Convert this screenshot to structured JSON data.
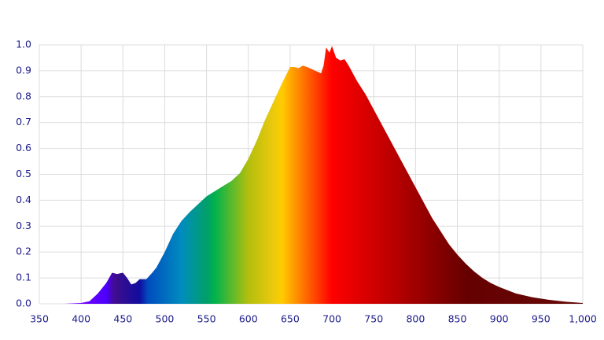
{
  "chart_data": {
    "type": "area",
    "x": [
      350,
      380,
      400,
      410,
      420,
      430,
      437,
      443,
      450,
      455,
      460,
      465,
      470,
      478,
      485,
      490,
      500,
      510,
      520,
      530,
      540,
      550,
      560,
      570,
      580,
      590,
      600,
      610,
      620,
      630,
      640,
      650,
      655,
      660,
      665,
      670,
      680,
      687,
      690,
      693,
      697,
      700,
      705,
      710,
      715,
      720,
      730,
      740,
      750,
      760,
      770,
      780,
      790,
      800,
      810,
      820,
      830,
      840,
      850,
      860,
      870,
      880,
      890,
      900,
      920,
      940,
      960,
      980,
      1000
    ],
    "values": [
      0,
      0,
      0.003,
      0.01,
      0.04,
      0.08,
      0.12,
      0.115,
      0.12,
      0.1,
      0.075,
      0.08,
      0.095,
      0.095,
      0.12,
      0.14,
      0.2,
      0.27,
      0.32,
      0.355,
      0.385,
      0.415,
      0.435,
      0.455,
      0.475,
      0.505,
      0.56,
      0.63,
      0.71,
      0.78,
      0.85,
      0.915,
      0.915,
      0.91,
      0.92,
      0.915,
      0.9,
      0.89,
      0.92,
      0.99,
      0.97,
      0.995,
      0.95,
      0.94,
      0.945,
      0.92,
      0.86,
      0.81,
      0.75,
      0.69,
      0.63,
      0.57,
      0.51,
      0.45,
      0.39,
      0.33,
      0.28,
      0.23,
      0.19,
      0.155,
      0.125,
      0.1,
      0.08,
      0.065,
      0.04,
      0.025,
      0.015,
      0.008,
      0.003
    ],
    "xlim": [
      350,
      1000
    ],
    "xticks": [
      350,
      400,
      450,
      500,
      550,
      600,
      650,
      700,
      750,
      800,
      850,
      900,
      950,
      {
        "value": 1000,
        "label": "1,000"
      }
    ],
    "ylim": [
      0,
      1
    ],
    "yticks": [
      {
        "value": 0,
        "label": "0.0"
      },
      0.1,
      0.2,
      0.3,
      0.4,
      0.5,
      0.6,
      0.7,
      0.8,
      0.9,
      {
        "value": 1,
        "label": "1.0"
      }
    ],
    "grid": true,
    "fill": "spectrum"
  }
}
